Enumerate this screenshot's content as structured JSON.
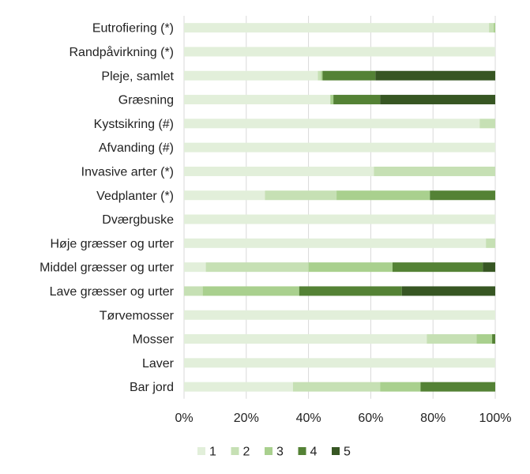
{
  "chart_data": {
    "type": "bar",
    "orientation": "horizontal",
    "stacked": "percent",
    "categories": [
      "Eutrofiering (*)",
      "Randpåvirkning (*)",
      "Pleje, samlet",
      "Græsning",
      "Kystsikring (#)",
      "Afvanding (#)",
      "Invasive arter (*)",
      "Vedplanter (*)",
      "Dværgbuske",
      "Høje græsser og urter",
      "Middel græsser og urter",
      "Lave græsser og urter",
      "Tørvemosser",
      "Mosser",
      "Laver",
      "Bar jord"
    ],
    "series": [
      {
        "name": "1",
        "color": "#e2efda",
        "values": [
          98,
          100,
          43,
          47,
          95,
          100,
          61,
          26,
          100,
          97,
          7,
          0,
          100,
          78,
          100,
          35
        ]
      },
      {
        "name": "2",
        "color": "#c6e0b4",
        "values": [
          1.5,
          0,
          1,
          0,
          5,
          0,
          39,
          23,
          0,
          3,
          33,
          6,
          0,
          16,
          0,
          28
        ]
      },
      {
        "name": "3",
        "color": "#a9d08e",
        "values": [
          0.5,
          0,
          0.5,
          1,
          0,
          0,
          0,
          30,
          0,
          0,
          27,
          31,
          0,
          5,
          0,
          13
        ]
      },
      {
        "name": "4",
        "color": "#548235",
        "values": [
          0,
          0,
          17,
          15,
          0,
          0,
          0,
          21,
          0,
          0,
          29,
          33,
          0,
          1,
          0,
          24
        ]
      },
      {
        "name": "5",
        "color": "#375623",
        "values": [
          0,
          0,
          38.5,
          37,
          0,
          0,
          0,
          0,
          0,
          0,
          4,
          30,
          0,
          0,
          0,
          0
        ]
      }
    ],
    "x_ticks": [
      "0%",
      "20%",
      "40%",
      "60%",
      "80%",
      "100%"
    ],
    "xlim": [
      0,
      100
    ],
    "grid": true,
    "legend_position": "bottom",
    "title": "",
    "xlabel": "",
    "ylabel": ""
  }
}
